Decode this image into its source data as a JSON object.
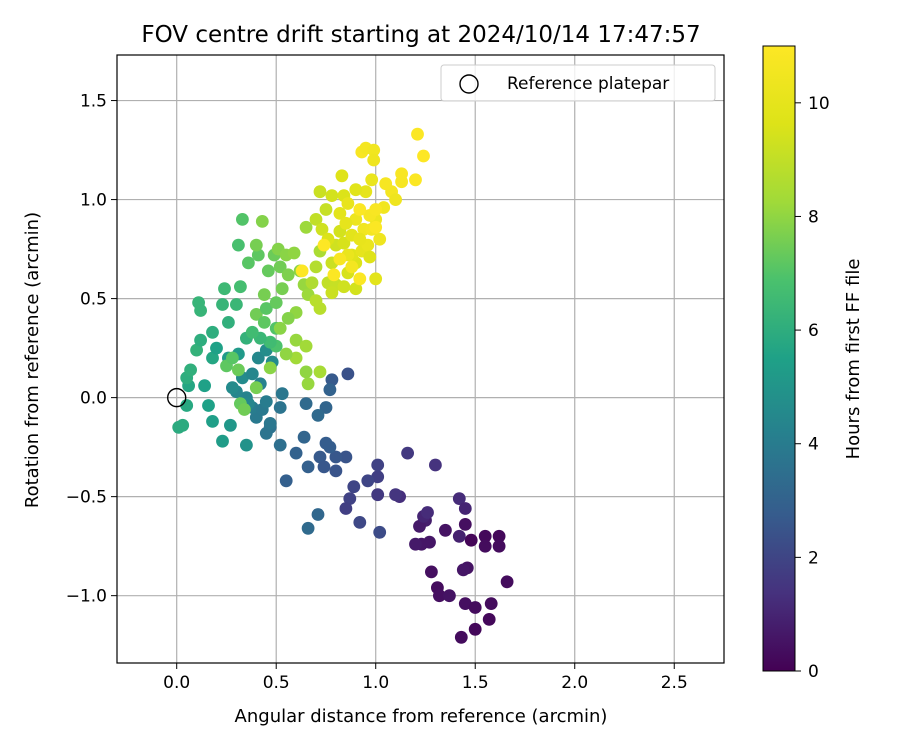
{
  "chart_data": {
    "type": "scatter",
    "title": "FOV centre drift starting at 2024/10/14 17:47:57",
    "xlabel": "Angular distance from reference (arcmin)",
    "ylabel": "Rotation from reference (arcmin)",
    "xlim": [
      -0.3,
      2.75
    ],
    "ylim": [
      -1.34,
      1.73
    ],
    "xticks": [
      0.0,
      0.5,
      1.0,
      1.5,
      2.0,
      2.5
    ],
    "xtick_labels": [
      "0.0",
      "0.5",
      "1.0",
      "1.5",
      "2.0",
      "2.5"
    ],
    "yticks": [
      -1.0,
      -0.5,
      0.0,
      0.5,
      1.0,
      1.5
    ],
    "ytick_labels": [
      "−1.0",
      "−0.5",
      "0.0",
      "0.5",
      "1.0",
      "1.5"
    ],
    "grid": true,
    "legend": {
      "position": "top-right",
      "label": "Reference platepar"
    },
    "reference_point": {
      "x": 0.0,
      "y": 0.0
    },
    "colorbar": {
      "label": "Hours from first FF file",
      "range": [
        0,
        11
      ],
      "colormap": "viridis",
      "ticks": [
        0,
        2,
        4,
        6,
        8,
        10
      ],
      "tick_labels": [
        "0",
        "2",
        "4",
        "6",
        "8",
        "10"
      ]
    },
    "points": [
      {
        "x": 1.48,
        "y": -0.72,
        "t": 0.1
      },
      {
        "x": 1.55,
        "y": -0.7,
        "t": 0.2
      },
      {
        "x": 1.62,
        "y": -0.7,
        "t": 0.2
      },
      {
        "x": 1.62,
        "y": -0.75,
        "t": 0.3
      },
      {
        "x": 1.55,
        "y": -0.75,
        "t": 0.3
      },
      {
        "x": 1.45,
        "y": -0.64,
        "t": 0.4
      },
      {
        "x": 1.35,
        "y": -0.67,
        "t": 0.5
      },
      {
        "x": 1.23,
        "y": -0.74,
        "t": 0.6
      },
      {
        "x": 1.2,
        "y": -0.74,
        "t": 0.7
      },
      {
        "x": 1.25,
        "y": -0.62,
        "t": 0.8
      },
      {
        "x": 1.22,
        "y": -0.65,
        "t": 0.7
      },
      {
        "x": 1.27,
        "y": -0.73,
        "t": 0.6
      },
      {
        "x": 1.28,
        "y": -0.88,
        "t": 0.4
      },
      {
        "x": 1.31,
        "y": -0.96,
        "t": 0.3
      },
      {
        "x": 1.32,
        "y": -1.0,
        "t": 0.4
      },
      {
        "x": 1.37,
        "y": -1.0,
        "t": 0.5
      },
      {
        "x": 1.45,
        "y": -1.04,
        "t": 0.4
      },
      {
        "x": 1.5,
        "y": -1.06,
        "t": 0.3
      },
      {
        "x": 1.5,
        "y": -1.17,
        "t": 0.2
      },
      {
        "x": 1.43,
        "y": -1.21,
        "t": 0.3
      },
      {
        "x": 1.57,
        "y": -1.12,
        "t": 0.2
      },
      {
        "x": 1.58,
        "y": -1.04,
        "t": 0.3
      },
      {
        "x": 1.66,
        "y": -0.93,
        "t": 0.3
      },
      {
        "x": 1.46,
        "y": -0.86,
        "t": 0.5
      },
      {
        "x": 1.44,
        "y": -0.87,
        "t": 0.6
      },
      {
        "x": 1.42,
        "y": -0.7,
        "t": 0.9
      },
      {
        "x": 1.42,
        "y": -0.51,
        "t": 1.2
      },
      {
        "x": 1.45,
        "y": -0.56,
        "t": 1.0
      },
      {
        "x": 1.24,
        "y": -0.6,
        "t": 1.0
      },
      {
        "x": 1.26,
        "y": -0.58,
        "t": 1.2
      },
      {
        "x": 1.3,
        "y": -0.34,
        "t": 1.4
      },
      {
        "x": 1.16,
        "y": -0.28,
        "t": 1.6
      },
      {
        "x": 1.12,
        "y": -0.5,
        "t": 1.3
      },
      {
        "x": 1.1,
        "y": -0.49,
        "t": 1.5
      },
      {
        "x": 1.01,
        "y": -0.49,
        "t": 1.6
      },
      {
        "x": 1.01,
        "y": -0.4,
        "t": 1.8
      },
      {
        "x": 1.01,
        "y": -0.34,
        "t": 1.9
      },
      {
        "x": 0.96,
        "y": -0.42,
        "t": 2.0
      },
      {
        "x": 0.92,
        "y": -0.63,
        "t": 2.1
      },
      {
        "x": 0.89,
        "y": -0.45,
        "t": 2.0
      },
      {
        "x": 0.87,
        "y": -0.51,
        "t": 1.9
      },
      {
        "x": 0.85,
        "y": -0.56,
        "t": 1.8
      },
      {
        "x": 1.02,
        "y": -0.68,
        "t": 2.2
      },
      {
        "x": 0.85,
        "y": -0.3,
        "t": 2.5
      },
      {
        "x": 0.8,
        "y": -0.3,
        "t": 2.6
      },
      {
        "x": 0.75,
        "y": -0.23,
        "t": 2.8
      },
      {
        "x": 0.72,
        "y": -0.3,
        "t": 2.7
      },
      {
        "x": 0.74,
        "y": -0.35,
        "t": 2.6
      },
      {
        "x": 0.77,
        "y": -0.25,
        "t": 2.8
      },
      {
        "x": 0.8,
        "y": -0.37,
        "t": 2.5
      },
      {
        "x": 0.66,
        "y": -0.35,
        "t": 2.9
      },
      {
        "x": 0.64,
        "y": -0.2,
        "t": 3.1
      },
      {
        "x": 0.6,
        "y": -0.28,
        "t": 3.0
      },
      {
        "x": 0.55,
        "y": -0.42,
        "t": 2.9
      },
      {
        "x": 0.71,
        "y": -0.59,
        "t": 3.2
      },
      {
        "x": 0.66,
        "y": -0.66,
        "t": 3.3
      },
      {
        "x": 0.86,
        "y": 0.12,
        "t": 2.4
      },
      {
        "x": 0.78,
        "y": 0.09,
        "t": 2.7
      },
      {
        "x": 0.77,
        "y": 0.04,
        "t": 3.0
      },
      {
        "x": 0.75,
        "y": -0.05,
        "t": 3.1
      },
      {
        "x": 0.71,
        "y": -0.09,
        "t": 3.3
      },
      {
        "x": 0.65,
        "y": -0.03,
        "t": 3.3
      },
      {
        "x": 0.52,
        "y": -0.24,
        "t": 3.5
      },
      {
        "x": 0.47,
        "y": -0.15,
        "t": 3.6
      },
      {
        "x": 0.45,
        "y": -0.18,
        "t": 3.7
      },
      {
        "x": 0.47,
        "y": -0.13,
        "t": 3.8
      },
      {
        "x": 0.4,
        "y": -0.1,
        "t": 3.9
      },
      {
        "x": 0.38,
        "y": -0.05,
        "t": 4.0
      },
      {
        "x": 0.43,
        "y": -0.06,
        "t": 3.9
      },
      {
        "x": 0.45,
        "y": -0.02,
        "t": 4.0
      },
      {
        "x": 0.52,
        "y": -0.05,
        "t": 3.7
      },
      {
        "x": 0.53,
        "y": 0.02,
        "t": 3.8
      },
      {
        "x": 0.42,
        "y": 0.07,
        "t": 4.2
      },
      {
        "x": 0.35,
        "y": 0.0,
        "t": 4.3
      },
      {
        "x": 0.3,
        "y": 0.03,
        "t": 4.4
      },
      {
        "x": 0.33,
        "y": 0.1,
        "t": 4.6
      },
      {
        "x": 0.28,
        "y": 0.05,
        "t": 4.6
      },
      {
        "x": 0.38,
        "y": 0.12,
        "t": 4.4
      },
      {
        "x": 0.41,
        "y": 0.2,
        "t": 4.5
      },
      {
        "x": 0.45,
        "y": 0.24,
        "t": 4.7
      },
      {
        "x": 0.48,
        "y": 0.18,
        "t": 4.6
      },
      {
        "x": 0.36,
        "y": -0.03,
        "t": 4.4
      },
      {
        "x": 0.35,
        "y": -0.24,
        "t": 4.9
      },
      {
        "x": 0.27,
        "y": -0.14,
        "t": 5.1
      },
      {
        "x": 0.23,
        "y": -0.22,
        "t": 5.3
      },
      {
        "x": 0.18,
        "y": -0.12,
        "t": 5.4
      },
      {
        "x": 0.16,
        "y": -0.04,
        "t": 5.5
      },
      {
        "x": 0.14,
        "y": 0.06,
        "t": 5.5
      },
      {
        "x": 0.06,
        "y": 0.06,
        "t": 5.7
      },
      {
        "x": 0.05,
        "y": -0.04,
        "t": 5.8
      },
      {
        "x": 0.03,
        "y": -0.14,
        "t": 5.9
      },
      {
        "x": 0.01,
        "y": -0.15,
        "t": 5.9
      },
      {
        "x": 0.05,
        "y": 0.1,
        "t": 6.0
      },
      {
        "x": 0.07,
        "y": 0.14,
        "t": 6.1
      },
      {
        "x": 0.1,
        "y": 0.24,
        "t": 6.2
      },
      {
        "x": 0.12,
        "y": 0.29,
        "t": 6.0
      },
      {
        "x": 0.18,
        "y": 0.2,
        "t": 5.7
      },
      {
        "x": 0.2,
        "y": 0.25,
        "t": 5.5
      },
      {
        "x": 0.26,
        "y": 0.2,
        "t": 5.2
      },
      {
        "x": 0.31,
        "y": 0.22,
        "t": 5.2
      },
      {
        "x": 0.18,
        "y": 0.33,
        "t": 6.0
      },
      {
        "x": 0.26,
        "y": 0.38,
        "t": 6.1
      },
      {
        "x": 0.23,
        "y": 0.47,
        "t": 6.3
      },
      {
        "x": 0.3,
        "y": 0.47,
        "t": 6.4
      },
      {
        "x": 0.11,
        "y": 0.48,
        "t": 6.3
      },
      {
        "x": 0.12,
        "y": 0.44,
        "t": 6.3
      },
      {
        "x": 0.24,
        "y": 0.55,
        "t": 6.5
      },
      {
        "x": 0.32,
        "y": 0.56,
        "t": 6.7
      },
      {
        "x": 0.31,
        "y": 0.77,
        "t": 6.8
      },
      {
        "x": 0.33,
        "y": 0.9,
        "t": 7.0
      },
      {
        "x": 0.36,
        "y": 0.68,
        "t": 7.1
      },
      {
        "x": 0.41,
        "y": 0.72,
        "t": 7.2
      },
      {
        "x": 0.46,
        "y": 0.64,
        "t": 7.3
      },
      {
        "x": 0.49,
        "y": 0.72,
        "t": 7.4
      },
      {
        "x": 0.52,
        "y": 0.66,
        "t": 7.5
      },
      {
        "x": 0.4,
        "y": 0.77,
        "t": 7.6
      },
      {
        "x": 0.43,
        "y": 0.89,
        "t": 7.8
      },
      {
        "x": 0.51,
        "y": 0.75,
        "t": 7.8
      },
      {
        "x": 0.55,
        "y": 0.72,
        "t": 7.9
      },
      {
        "x": 0.59,
        "y": 0.73,
        "t": 8.0
      },
      {
        "x": 0.44,
        "y": 0.52,
        "t": 7.6
      },
      {
        "x": 0.4,
        "y": 0.42,
        "t": 7.5
      },
      {
        "x": 0.44,
        "y": 0.38,
        "t": 7.2
      },
      {
        "x": 0.5,
        "y": 0.35,
        "t": 7.0
      },
      {
        "x": 0.5,
        "y": 0.26,
        "t": 6.9
      },
      {
        "x": 0.47,
        "y": 0.28,
        "t": 6.6
      },
      {
        "x": 0.42,
        "y": 0.3,
        "t": 6.4
      },
      {
        "x": 0.35,
        "y": 0.3,
        "t": 6.2
      },
      {
        "x": 0.38,
        "y": 0.33,
        "t": 6.6
      },
      {
        "x": 0.45,
        "y": 0.45,
        "t": 7.1
      },
      {
        "x": 0.5,
        "y": 0.48,
        "t": 7.3
      },
      {
        "x": 0.53,
        "y": 0.55,
        "t": 7.6
      },
      {
        "x": 0.56,
        "y": 0.62,
        "t": 7.7
      },
      {
        "x": 0.62,
        "y": 0.64,
        "t": 7.9
      },
      {
        "x": 0.64,
        "y": 0.57,
        "t": 8.1
      },
      {
        "x": 0.66,
        "y": 0.52,
        "t": 8.2
      },
      {
        "x": 0.6,
        "y": 0.43,
        "t": 8.0
      },
      {
        "x": 0.56,
        "y": 0.4,
        "t": 7.8
      },
      {
        "x": 0.52,
        "y": 0.35,
        "t": 7.9
      },
      {
        "x": 0.6,
        "y": 0.29,
        "t": 8.1
      },
      {
        "x": 0.65,
        "y": 0.26,
        "t": 8.3
      },
      {
        "x": 0.6,
        "y": 0.2,
        "t": 8.3
      },
      {
        "x": 0.55,
        "y": 0.22,
        "t": 8.0
      },
      {
        "x": 0.47,
        "y": 0.15,
        "t": 7.9
      },
      {
        "x": 0.4,
        "y": 0.05,
        "t": 7.6
      },
      {
        "x": 0.31,
        "y": 0.14,
        "t": 7.4
      },
      {
        "x": 0.25,
        "y": 0.16,
        "t": 7.2
      },
      {
        "x": 0.28,
        "y": 0.2,
        "t": 7.1
      },
      {
        "x": 0.32,
        "y": -0.03,
        "t": 7.3
      },
      {
        "x": 0.34,
        "y": -0.06,
        "t": 7.5
      },
      {
        "x": 0.66,
        "y": 0.07,
        "t": 8.1
      },
      {
        "x": 0.65,
        "y": 0.13,
        "t": 8.0
      },
      {
        "x": 0.72,
        "y": 0.13,
        "t": 8.4
      },
      {
        "x": 0.65,
        "y": 0.86,
        "t": 8.2
      },
      {
        "x": 0.72,
        "y": 0.74,
        "t": 8.5
      },
      {
        "x": 0.7,
        "y": 0.66,
        "t": 8.7
      },
      {
        "x": 0.68,
        "y": 0.58,
        "t": 8.6
      },
      {
        "x": 0.7,
        "y": 0.49,
        "t": 8.8
      },
      {
        "x": 0.72,
        "y": 0.45,
        "t": 8.8
      },
      {
        "x": 0.76,
        "y": 0.58,
        "t": 9.0
      },
      {
        "x": 0.78,
        "y": 0.68,
        "t": 9.2
      },
      {
        "x": 0.8,
        "y": 0.77,
        "t": 9.3
      },
      {
        "x": 0.82,
        "y": 0.84,
        "t": 9.4
      },
      {
        "x": 0.84,
        "y": 0.78,
        "t": 9.5
      },
      {
        "x": 0.8,
        "y": 0.57,
        "t": 9.1
      },
      {
        "x": 0.78,
        "y": 0.53,
        "t": 9.2
      },
      {
        "x": 0.84,
        "y": 0.56,
        "t": 9.3
      },
      {
        "x": 0.86,
        "y": 0.63,
        "t": 9.5
      },
      {
        "x": 0.9,
        "y": 0.68,
        "t": 9.6
      },
      {
        "x": 0.88,
        "y": 0.72,
        "t": 9.8
      },
      {
        "x": 0.93,
        "y": 0.74,
        "t": 10.0
      },
      {
        "x": 0.96,
        "y": 0.77,
        "t": 10.2
      },
      {
        "x": 0.9,
        "y": 0.55,
        "t": 9.4
      },
      {
        "x": 0.97,
        "y": 0.71,
        "t": 9.7
      },
      {
        "x": 1.0,
        "y": 0.6,
        "t": 9.9
      },
      {
        "x": 1.02,
        "y": 0.8,
        "t": 10.4
      },
      {
        "x": 1.0,
        "y": 0.9,
        "t": 10.3
      },
      {
        "x": 1.04,
        "y": 0.96,
        "t": 10.5
      },
      {
        "x": 1.08,
        "y": 1.04,
        "t": 10.6
      },
      {
        "x": 1.05,
        "y": 1.08,
        "t": 10.7
      },
      {
        "x": 1.1,
        "y": 1.0,
        "t": 10.4
      },
      {
        "x": 1.13,
        "y": 1.09,
        "t": 10.7
      },
      {
        "x": 1.13,
        "y": 1.13,
        "t": 10.8
      },
      {
        "x": 1.2,
        "y": 1.1,
        "t": 10.9
      },
      {
        "x": 1.21,
        "y": 1.33,
        "t": 10.9
      },
      {
        "x": 1.24,
        "y": 1.22,
        "t": 11.0
      },
      {
        "x": 0.93,
        "y": 1.24,
        "t": 10.8
      },
      {
        "x": 0.95,
        "y": 1.26,
        "t": 10.6
      },
      {
        "x": 0.99,
        "y": 1.25,
        "t": 10.5
      },
      {
        "x": 0.99,
        "y": 1.2,
        "t": 10.4
      },
      {
        "x": 0.98,
        "y": 1.1,
        "t": 10.2
      },
      {
        "x": 0.95,
        "y": 1.04,
        "t": 10.0
      },
      {
        "x": 0.9,
        "y": 1.05,
        "t": 9.8
      },
      {
        "x": 0.83,
        "y": 1.12,
        "t": 9.7
      },
      {
        "x": 0.84,
        "y": 1.02,
        "t": 9.6
      },
      {
        "x": 0.78,
        "y": 1.02,
        "t": 9.4
      },
      {
        "x": 0.72,
        "y": 1.04,
        "t": 9.2
      },
      {
        "x": 0.75,
        "y": 0.95,
        "t": 9.1
      },
      {
        "x": 0.7,
        "y": 0.9,
        "t": 9.0
      },
      {
        "x": 0.73,
        "y": 0.85,
        "t": 9.3
      },
      {
        "x": 0.76,
        "y": 0.8,
        "t": 9.6
      },
      {
        "x": 0.82,
        "y": 0.93,
        "t": 9.9
      },
      {
        "x": 0.86,
        "y": 0.98,
        "t": 10.1
      },
      {
        "x": 0.9,
        "y": 0.9,
        "t": 10.3
      },
      {
        "x": 0.94,
        "y": 0.85,
        "t": 10.5
      },
      {
        "x": 0.97,
        "y": 0.92,
        "t": 10.7
      },
      {
        "x": 1.0,
        "y": 0.95,
        "t": 10.8
      },
      {
        "x": 0.92,
        "y": 0.6,
        "t": 10.9
      },
      {
        "x": 0.88,
        "y": 0.66,
        "t": 10.6
      },
      {
        "x": 0.86,
        "y": 0.72,
        "t": 10.2
      },
      {
        "x": 0.85,
        "y": 0.88,
        "t": 10.0
      },
      {
        "x": 0.88,
        "y": 0.82,
        "t": 9.9
      },
      {
        "x": 0.92,
        "y": 0.8,
        "t": 10.1
      },
      {
        "x": 0.98,
        "y": 0.85,
        "t": 10.6
      },
      {
        "x": 1.0,
        "y": 0.86,
        "t": 10.9
      },
      {
        "x": 0.92,
        "y": 0.95,
        "t": 10.9
      },
      {
        "x": 0.82,
        "y": 0.7,
        "t": 10.8
      },
      {
        "x": 0.79,
        "y": 0.62,
        "t": 10.9
      },
      {
        "x": 0.74,
        "y": 0.77,
        "t": 11.0
      },
      {
        "x": 0.63,
        "y": 0.64,
        "t": 11.0
      }
    ]
  }
}
